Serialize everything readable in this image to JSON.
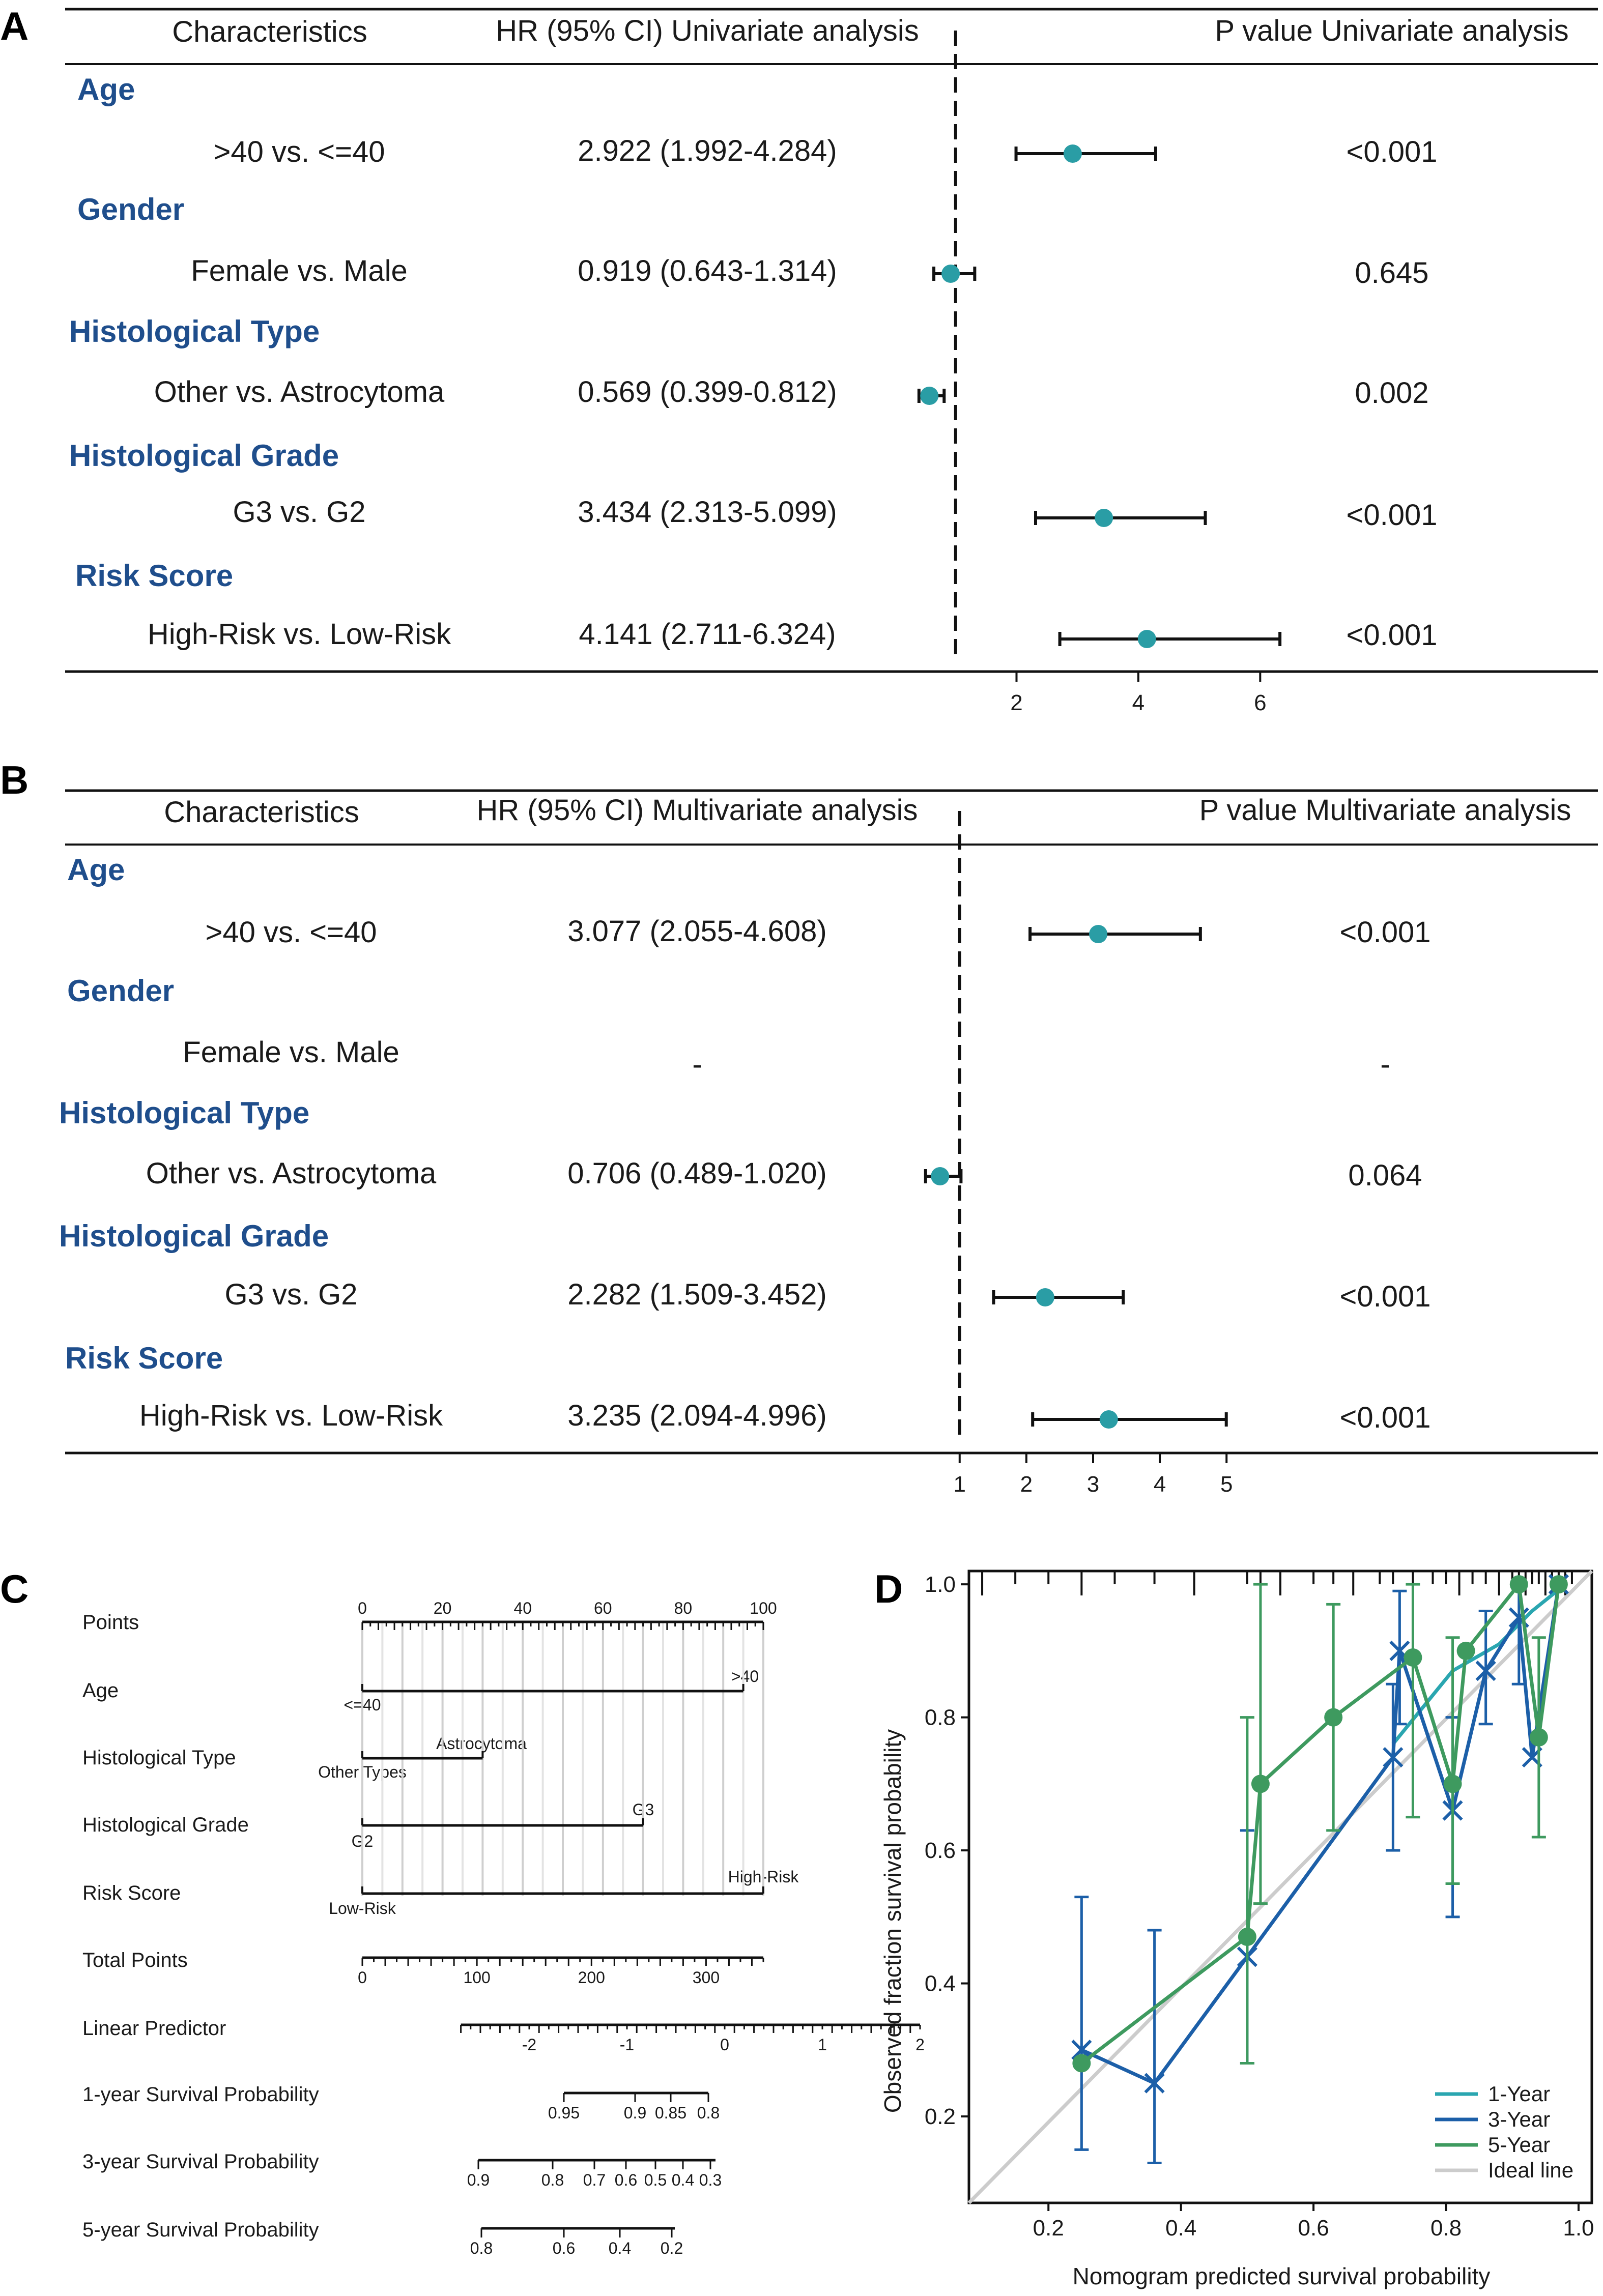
{
  "chart_data": [
    {
      "type": "forest",
      "panel_label": "A",
      "headers": {
        "characteristics": "Characteristics",
        "hr": "HR (95% CI) Univariate analysis",
        "p": "P value Univariate analysis"
      },
      "rows": [
        {
          "category": "Age",
          "comparison": ">40 vs. <=40",
          "hr_text": "2.922 (1.992-4.284)",
          "hr": 2.922,
          "lo": 1.992,
          "hi": 4.284,
          "p": "<0.001"
        },
        {
          "category": "Gender",
          "comparison": "Female vs. Male",
          "hr_text": "0.919 (0.643-1.314)",
          "hr": 0.919,
          "lo": 0.643,
          "hi": 1.314,
          "p": "0.645"
        },
        {
          "category": "Histological Type",
          "comparison": "Other vs. Astrocytoma",
          "hr_text": "0.569 (0.399-0.812)",
          "hr": 0.569,
          "lo": 0.399,
          "hi": 0.812,
          "p": "0.002"
        },
        {
          "category": "Histological Grade",
          "comparison": "G3 vs. G2",
          "hr_text": "3.434 (2.313-5.099)",
          "hr": 3.434,
          "lo": 2.313,
          "hi": 5.099,
          "p": "<0.001"
        },
        {
          "category": "Risk Score",
          "comparison": "High-Risk vs. Low-Risk",
          "hr_text": "4.141 (2.711-6.324)",
          "hr": 4.141,
          "lo": 2.711,
          "hi": 6.324,
          "p": "<0.001"
        }
      ],
      "x_ticks": [
        "2",
        "4",
        "6"
      ],
      "xlim": [
        0.3,
        7.2
      ],
      "reference": 1
    },
    {
      "type": "forest",
      "panel_label": "B",
      "headers": {
        "characteristics": "Characteristics",
        "hr": "HR (95% CI) Multivariate analysis",
        "p": "P value Multivariate analysis"
      },
      "rows": [
        {
          "category": "Age",
          "comparison": ">40 vs. <=40",
          "hr_text": "3.077 (2.055-4.608)",
          "hr": 3.077,
          "lo": 2.055,
          "hi": 4.608,
          "p": "<0.001"
        },
        {
          "category": "Gender",
          "comparison": "Female vs. Male",
          "hr_text": "-",
          "hr": null,
          "lo": null,
          "hi": null,
          "p": "-"
        },
        {
          "category": "Histological Type",
          "comparison": "Other vs. Astrocytoma",
          "hr_text": "0.706 (0.489-1.020)",
          "hr": 0.706,
          "lo": 0.489,
          "hi": 1.02,
          "p": "0.064"
        },
        {
          "category": "Histological Grade",
          "comparison": "G3 vs. G2",
          "hr_text": "2.282 (1.509-3.452)",
          "hr": 2.282,
          "lo": 1.509,
          "hi": 3.452,
          "p": "<0.001"
        },
        {
          "category": "Risk Score",
          "comparison": "High-Risk vs. Low-Risk",
          "hr_text": "3.235 (2.094-4.996)",
          "hr": 3.235,
          "lo": 2.094,
          "hi": 4.996,
          "p": "<0.001"
        }
      ],
      "x_ticks": [
        "1",
        "2",
        "3",
        "4",
        "5"
      ],
      "xlim": [
        0.3,
        6.6
      ],
      "reference": 1
    },
    {
      "type": "nomogram",
      "panel_label": "C",
      "rows": [
        {
          "label": "Points",
          "scale": {
            "from": 0,
            "to": 100,
            "labels": [
              "0",
              "20",
              "40",
              "60",
              "80",
              "100"
            ]
          }
        },
        {
          "label": "Age",
          "levels": [
            {
              "text": "<=40",
              "points": 0
            },
            {
              "text": ">40",
              "points": 95
            }
          ]
        },
        {
          "label": "Histological Type",
          "levels": [
            {
              "text": "Other Types",
              "points": 0
            },
            {
              "text": "Astrocytoma",
              "points": 30
            }
          ]
        },
        {
          "label": "Histological Grade",
          "levels": [
            {
              "text": "G2",
              "points": 0
            },
            {
              "text": "G3",
              "points": 70
            }
          ]
        },
        {
          "label": "Risk Score",
          "levels": [
            {
              "text": "Low-Risk",
              "points": 0
            },
            {
              "text": "High-Risk",
              "points": 100
            }
          ]
        },
        {
          "label": "Total Points",
          "scale": {
            "from": 0,
            "to": 350,
            "labels": [
              "0",
              "100",
              "200",
              "300"
            ]
          }
        },
        {
          "label": "Linear Predictor",
          "scale": {
            "from": -2,
            "to": 2,
            "labels": [
              "-2",
              "-1",
              "0",
              "1",
              "2"
            ]
          }
        },
        {
          "label": "1-year Survival Probability",
          "scale": {
            "labels": [
              "0.95",
              "0.9",
              "0.85",
              "0.8"
            ]
          }
        },
        {
          "label": "3-year Survival Probability",
          "scale": {
            "labels": [
              "0.9",
              "0.8",
              "0.7",
              "0.6",
              "0.5",
              "0.4",
              "0.3"
            ]
          }
        },
        {
          "label": "5-year Survival Probability",
          "scale": {
            "labels": [
              "0.8",
              "0.6",
              "0.4",
              "0.2"
            ]
          }
        }
      ]
    },
    {
      "type": "line",
      "panel_label": "D",
      "xlabel": "Nomogram predicted survival probability",
      "ylabel": "Observed fraction survival probability",
      "xlim": [
        0.08,
        1.02
      ],
      "ylim": [
        0.07,
        1.02
      ],
      "x_ticks": [
        "0.2",
        "0.4",
        "0.6",
        "0.8",
        "1.0"
      ],
      "y_ticks": [
        "0.2",
        "0.4",
        "0.6",
        "0.8",
        "1.0"
      ],
      "series": [
        {
          "name": "1-Year",
          "color": "#2aa6b0",
          "marker": "none",
          "points": [
            {
              "x": 0.72,
              "y": 0.76
            },
            {
              "x": 0.81,
              "y": 0.87
            },
            {
              "x": 0.88,
              "y": 0.91
            },
            {
              "x": 0.93,
              "y": 0.96
            },
            {
              "x": 0.98,
              "y": 1.0
            }
          ]
        },
        {
          "name": "3-Year",
          "color": "#1c5fa8",
          "marker": "x",
          "points": [
            {
              "x": 0.25,
              "y": 0.3
            },
            {
              "x": 0.36,
              "y": 0.25
            },
            {
              "x": 0.5,
              "y": 0.44
            },
            {
              "x": 0.72,
              "y": 0.74
            },
            {
              "x": 0.73,
              "y": 0.9
            },
            {
              "x": 0.81,
              "y": 0.66
            },
            {
              "x": 0.86,
              "y": 0.87
            },
            {
              "x": 0.91,
              "y": 0.95
            },
            {
              "x": 0.93,
              "y": 0.74
            },
            {
              "x": 0.97,
              "y": 1.0
            }
          ],
          "err": [
            [
              0.25,
              0.15,
              0.53
            ],
            [
              0.36,
              0.13,
              0.48
            ],
            [
              0.5,
              0.28,
              0.63
            ],
            [
              0.72,
              0.6,
              0.85
            ],
            [
              0.73,
              0.79,
              0.99
            ],
            [
              0.81,
              0.5,
              0.8
            ],
            [
              0.86,
              0.79,
              0.96
            ],
            [
              0.91,
              0.85,
              1.0
            ]
          ]
        },
        {
          "name": "5-Year",
          "color": "#3e9a5f",
          "marker": "o",
          "points": [
            {
              "x": 0.25,
              "y": 0.28
            },
            {
              "x": 0.5,
              "y": 0.47
            },
            {
              "x": 0.52,
              "y": 0.7
            },
            {
              "x": 0.63,
              "y": 0.8
            },
            {
              "x": 0.75,
              "y": 0.89
            },
            {
              "x": 0.81,
              "y": 0.7
            },
            {
              "x": 0.83,
              "y": 0.9
            },
            {
              "x": 0.91,
              "y": 1.0
            },
            {
              "x": 0.94,
              "y": 0.77
            },
            {
              "x": 0.97,
              "y": 1.0
            }
          ],
          "err": [
            [
              0.52,
              0.52,
              1.0
            ],
            [
              0.5,
              0.28,
              0.8
            ],
            [
              0.63,
              0.63,
              0.97
            ],
            [
              0.75,
              0.65,
              1.0
            ],
            [
              0.81,
              0.55,
              0.92
            ],
            [
              0.94,
              0.62,
              0.92
            ]
          ]
        },
        {
          "name": "Ideal line",
          "color": "#cccccc",
          "marker": "none",
          "points": [
            {
              "x": 0.08,
              "y": 0.07
            },
            {
              "x": 1.02,
              "y": 1.02
            }
          ]
        }
      ],
      "rug_x": [
        0.1,
        0.15,
        0.2,
        0.25,
        0.3,
        0.36,
        0.42,
        0.5,
        0.52,
        0.55,
        0.6,
        0.63,
        0.66,
        0.7,
        0.72,
        0.75,
        0.78,
        0.8,
        0.82,
        0.84,
        0.86,
        0.88,
        0.9,
        0.91,
        0.92,
        0.93,
        0.94,
        0.95,
        0.96,
        0.97,
        0.98,
        0.99
      ]
    }
  ]
}
